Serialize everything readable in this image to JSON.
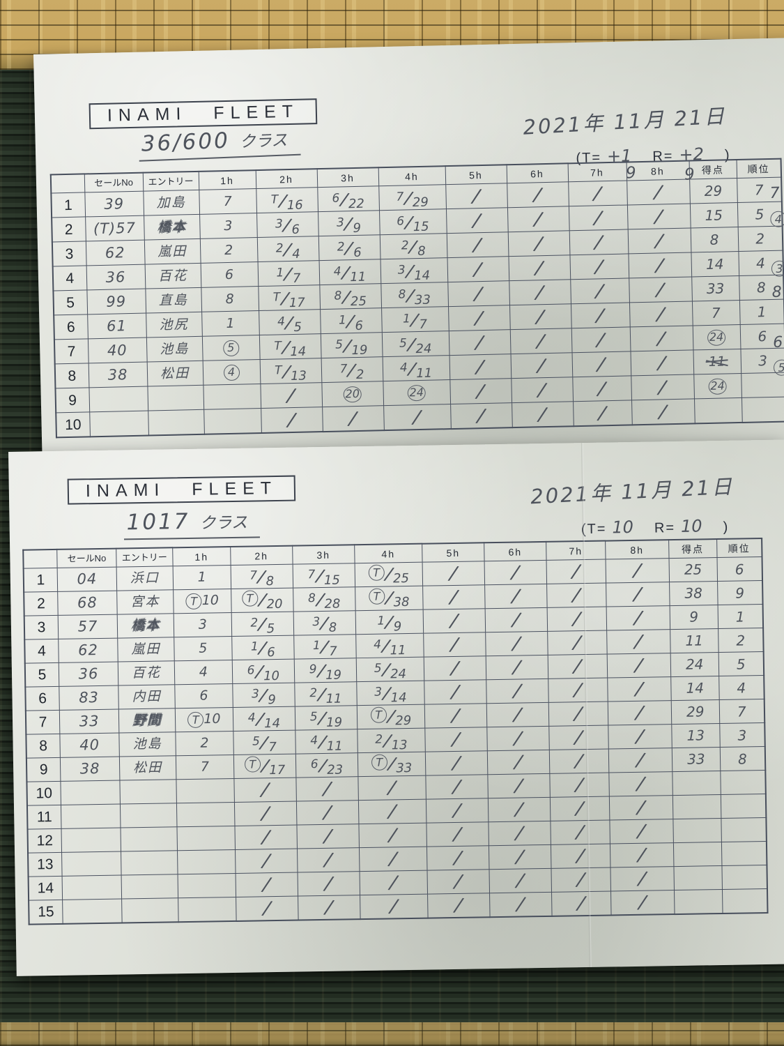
{
  "sheets": [
    {
      "title": "INAMI FLEET",
      "class_value": "36/600",
      "class_suffix": "クラス",
      "date": "2021年 11月 21日",
      "tr_prefix": "(T=",
      "t_value": "+1",
      "tr_mid": "R=",
      "r_value": "+2",
      "tr_suffix": ")",
      "notes_above_columns": [
        "9",
        "9"
      ],
      "headers": [
        "",
        "セールNo",
        "エントリー",
        "1h",
        "2h",
        "3h",
        "4h",
        "5h",
        "6h",
        "7h",
        "8h",
        "得点",
        "順位"
      ],
      "rows": [
        {
          "no": "1",
          "sail": "39",
          "name": "加島",
          "h": [
            "7",
            "T/16",
            "6/22",
            "7/29",
            "/",
            "/",
            "/",
            "/"
          ],
          "score": "29",
          "rank": "7"
        },
        {
          "no": "2",
          "sail": "(T)57",
          "name": "橋本",
          "scribbled": true,
          "h": [
            "3",
            "3/6",
            "3/9",
            "6/15",
            "/",
            "/",
            "/",
            "/"
          ],
          "score": "15",
          "rank": "5"
        },
        {
          "no": "3",
          "sail": "62",
          "name": "嵐田",
          "h": [
            "2",
            "2/4",
            "2/6",
            "2/8",
            "/",
            "/",
            "/",
            "/"
          ],
          "score": "8",
          "rank": "2"
        },
        {
          "no": "4",
          "sail": "36",
          "name": "百花",
          "h": [
            "6",
            "1/7",
            "4/11",
            "3/14",
            "/",
            "/",
            "/",
            "/"
          ],
          "score": "14",
          "rank": "4"
        },
        {
          "no": "5",
          "sail": "99",
          "name": "直島",
          "h": [
            "8",
            "T/17",
            "8/25",
            "8/33",
            "/",
            "/",
            "/",
            "/"
          ],
          "score": "33",
          "rank": "8"
        },
        {
          "no": "6",
          "sail": "61",
          "name": "池尻",
          "h": [
            "1",
            "4/5",
            "1/6",
            "1/7",
            "/",
            "/",
            "/",
            "/"
          ],
          "score": "7",
          "rank": "1"
        },
        {
          "no": "7",
          "sail": "40",
          "name": "池島",
          "h": [
            "(5)",
            "T/14",
            "5/19",
            "5/24",
            "/",
            "/",
            "/",
            "/"
          ],
          "score": "(24)",
          "rank": "6"
        },
        {
          "no": "8",
          "sail": "38",
          "name": "松田",
          "h": [
            "(4)",
            "T/13",
            "7/2",
            "4/11",
            "/",
            "/",
            "/",
            "/"
          ],
          "score": "~11~",
          "rank": "3"
        },
        {
          "no": "9",
          "sail": "",
          "name": "",
          "h": [
            "",
            "/",
            "(20)",
            "(24)",
            "/",
            "/",
            "/",
            "/"
          ],
          "score": "(24)",
          "rank": ""
        },
        {
          "no": "10",
          "sail": "",
          "name": "",
          "h": [
            "",
            "/",
            "/",
            "/",
            "/",
            "/",
            "/",
            "/"
          ],
          "score": "",
          "rank": ""
        }
      ],
      "margin_ranks": [
        {
          "row": 1,
          "value": "7"
        },
        {
          "row": 2,
          "value": "(4)"
        },
        {
          "row": 4,
          "value": "(3)"
        },
        {
          "row": 5,
          "value": "8"
        },
        {
          "row": 7,
          "value": "6"
        },
        {
          "row": 8,
          "value": "(5)"
        }
      ]
    },
    {
      "title": "INAMI FLEET",
      "class_value": "1017",
      "class_suffix": "クラス",
      "date": "2021年 11月 21日",
      "tr_prefix": "(T=",
      "t_value": "10",
      "tr_mid": "R=",
      "r_value": "10",
      "tr_suffix": ")",
      "notes_above_columns": [],
      "headers": [
        "",
        "セールNo",
        "エントリー",
        "1h",
        "2h",
        "3h",
        "4h",
        "5h",
        "6h",
        "7h",
        "8h",
        "得点",
        "順位"
      ],
      "rows": [
        {
          "no": "1",
          "sail": "04",
          "name": "浜口",
          "h": [
            "1",
            "7/8",
            "7/15",
            "(T)/25",
            "/",
            "/",
            "/",
            "/"
          ],
          "score": "25",
          "rank": "6"
        },
        {
          "no": "2",
          "sail": "68",
          "name": "宮本",
          "h": [
            "(T)10",
            "(T)/20",
            "8/28",
            "(T)/38",
            "/",
            "/",
            "/",
            "/"
          ],
          "score": "38",
          "rank": "9"
        },
        {
          "no": "3",
          "sail": "57",
          "name": "橋本",
          "scribbled": true,
          "h": [
            "3",
            "2/5",
            "3/8",
            "1/9",
            "/",
            "/",
            "/",
            "/"
          ],
          "score": "9",
          "rank": "1"
        },
        {
          "no": "4",
          "sail": "62",
          "name": "嵐田",
          "h": [
            "5",
            "1/6",
            "1/7",
            "4/11",
            "/",
            "/",
            "/",
            "/"
          ],
          "score": "11",
          "rank": "2"
        },
        {
          "no": "5",
          "sail": "36",
          "name": "百花",
          "h": [
            "4",
            "6/10",
            "9/19",
            "5/24",
            "/",
            "/",
            "/",
            "/"
          ],
          "score": "24",
          "rank": "5"
        },
        {
          "no": "6",
          "sail": "83",
          "name": "内田",
          "h": [
            "6",
            "3/9",
            "2/11",
            "3/14",
            "/",
            "/",
            "/",
            "/"
          ],
          "score": "14",
          "rank": "4"
        },
        {
          "no": "7",
          "sail": "33",
          "name": "野間",
          "scribbled": true,
          "h": [
            "(T)10",
            "4/14",
            "5/19",
            "(T)/29",
            "/",
            "/",
            "/",
            "/"
          ],
          "score": "29",
          "rank": "7"
        },
        {
          "no": "8",
          "sail": "40",
          "name": "池島",
          "h": [
            "2",
            "5/7",
            "4/11",
            "2/13",
            "/",
            "/",
            "/",
            "/"
          ],
          "score": "13",
          "rank": "3"
        },
        {
          "no": "9",
          "sail": "38",
          "name": "松田",
          "h": [
            "7",
            "(T)/17",
            "6/23",
            "(T)/33",
            "/",
            "/",
            "/",
            "/"
          ],
          "score": "33",
          "rank": "8"
        },
        {
          "no": "10",
          "sail": "",
          "name": "",
          "h": [
            "",
            "/",
            "/",
            "/",
            "/",
            "/",
            "/",
            "/"
          ],
          "score": "",
          "rank": ""
        },
        {
          "no": "11",
          "sail": "",
          "name": "",
          "h": [
            "",
            "/",
            "/",
            "/",
            "/",
            "/",
            "/",
            "/"
          ],
          "score": "",
          "rank": ""
        },
        {
          "no": "12",
          "sail": "",
          "name": "",
          "h": [
            "",
            "/",
            "/",
            "/",
            "/",
            "/",
            "/",
            "/"
          ],
          "score": "",
          "rank": ""
        },
        {
          "no": "13",
          "sail": "",
          "name": "",
          "h": [
            "",
            "/",
            "/",
            "/",
            "/",
            "/",
            "/",
            "/"
          ],
          "score": "",
          "rank": ""
        },
        {
          "no": "14",
          "sail": "",
          "name": "",
          "h": [
            "",
            "/",
            "/",
            "/",
            "/",
            "/",
            "/",
            "/"
          ],
          "score": "",
          "rank": ""
        },
        {
          "no": "15",
          "sail": "",
          "name": "",
          "h": [
            "",
            "/",
            "/",
            "/",
            "/",
            "/",
            "/",
            "/"
          ],
          "score": "",
          "rank": ""
        }
      ],
      "margin_ranks": []
    }
  ]
}
